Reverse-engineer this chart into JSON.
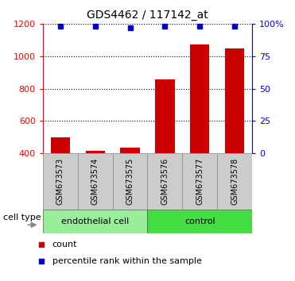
{
  "title": "GDS4462 / 117142_at",
  "samples": [
    "GSM673573",
    "GSM673574",
    "GSM673575",
    "GSM673576",
    "GSM673577",
    "GSM673578"
  ],
  "counts": [
    500,
    415,
    435,
    855,
    1075,
    1050
  ],
  "percentile_ranks": [
    98,
    98,
    97,
    98,
    98,
    98
  ],
  "ylim_left": [
    400,
    1200
  ],
  "yticks_left": [
    400,
    600,
    800,
    1000,
    1200
  ],
  "ylim_right": [
    0,
    100
  ],
  "yticks_right": [
    0,
    25,
    50,
    75,
    100
  ],
  "bar_color": "#cc0000",
  "dot_color": "#0000cc",
  "groups": [
    {
      "label": "endothelial cell",
      "indices": [
        0,
        1,
        2
      ],
      "color": "#99ee99"
    },
    {
      "label": "control",
      "indices": [
        3,
        4,
        5
      ],
      "color": "#44dd44"
    }
  ],
  "cell_type_label": "cell type",
  "legend_count_label": "count",
  "legend_percentile_label": "percentile rank within the sample",
  "bar_width": 0.55,
  "sample_box_color": "#cccccc",
  "plot_bg": "#ffffff",
  "grid_color": "#000000",
  "ytick_right_labels": [
    "0",
    "25",
    "50",
    "75",
    "100%"
  ]
}
